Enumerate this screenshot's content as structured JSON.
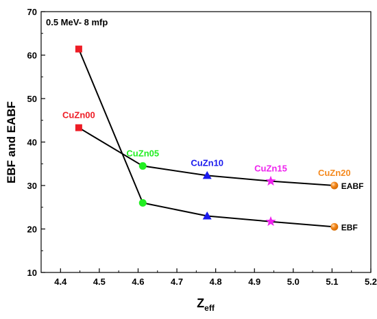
{
  "chart_data": {
    "type": "line",
    "annotation": "0.5 MeV- 8 mfp",
    "xlabel": "Z",
    "xlabel_sub": "eff",
    "ylabel": "EBF and EABF",
    "xlim": [
      4.35,
      5.2
    ],
    "ylim": [
      10,
      70
    ],
    "xticks": [
      "4.4",
      "4.5",
      "4.6",
      "4.7",
      "4.8",
      "4.9",
      "5.0",
      "5.1",
      "5.2"
    ],
    "yticks": [
      "10",
      "20",
      "30",
      "40",
      "50",
      "60",
      "70"
    ],
    "grid": false,
    "x": [
      4.447,
      4.612,
      4.778,
      4.942,
      5.106
    ],
    "series": [
      {
        "name": "EABF",
        "values": [
          43.3,
          34.5,
          32.3,
          31.0,
          30.0
        ]
      },
      {
        "name": "EBF",
        "values": [
          61.4,
          26.0,
          23.0,
          21.7,
          20.5
        ]
      }
    ],
    "points": [
      {
        "label": "CuZn00",
        "marker": "square",
        "color": "#ee1c25"
      },
      {
        "label": "CuZn05",
        "marker": "circle",
        "color": "#22ee22"
      },
      {
        "label": "CuZn10",
        "marker": "triangle",
        "color": "#1a1aee"
      },
      {
        "label": "CuZn15",
        "marker": "star",
        "color": "#ee22ee"
      },
      {
        "label": "CuZn20",
        "marker": "sphere",
        "color": "#f58a1f"
      }
    ]
  }
}
